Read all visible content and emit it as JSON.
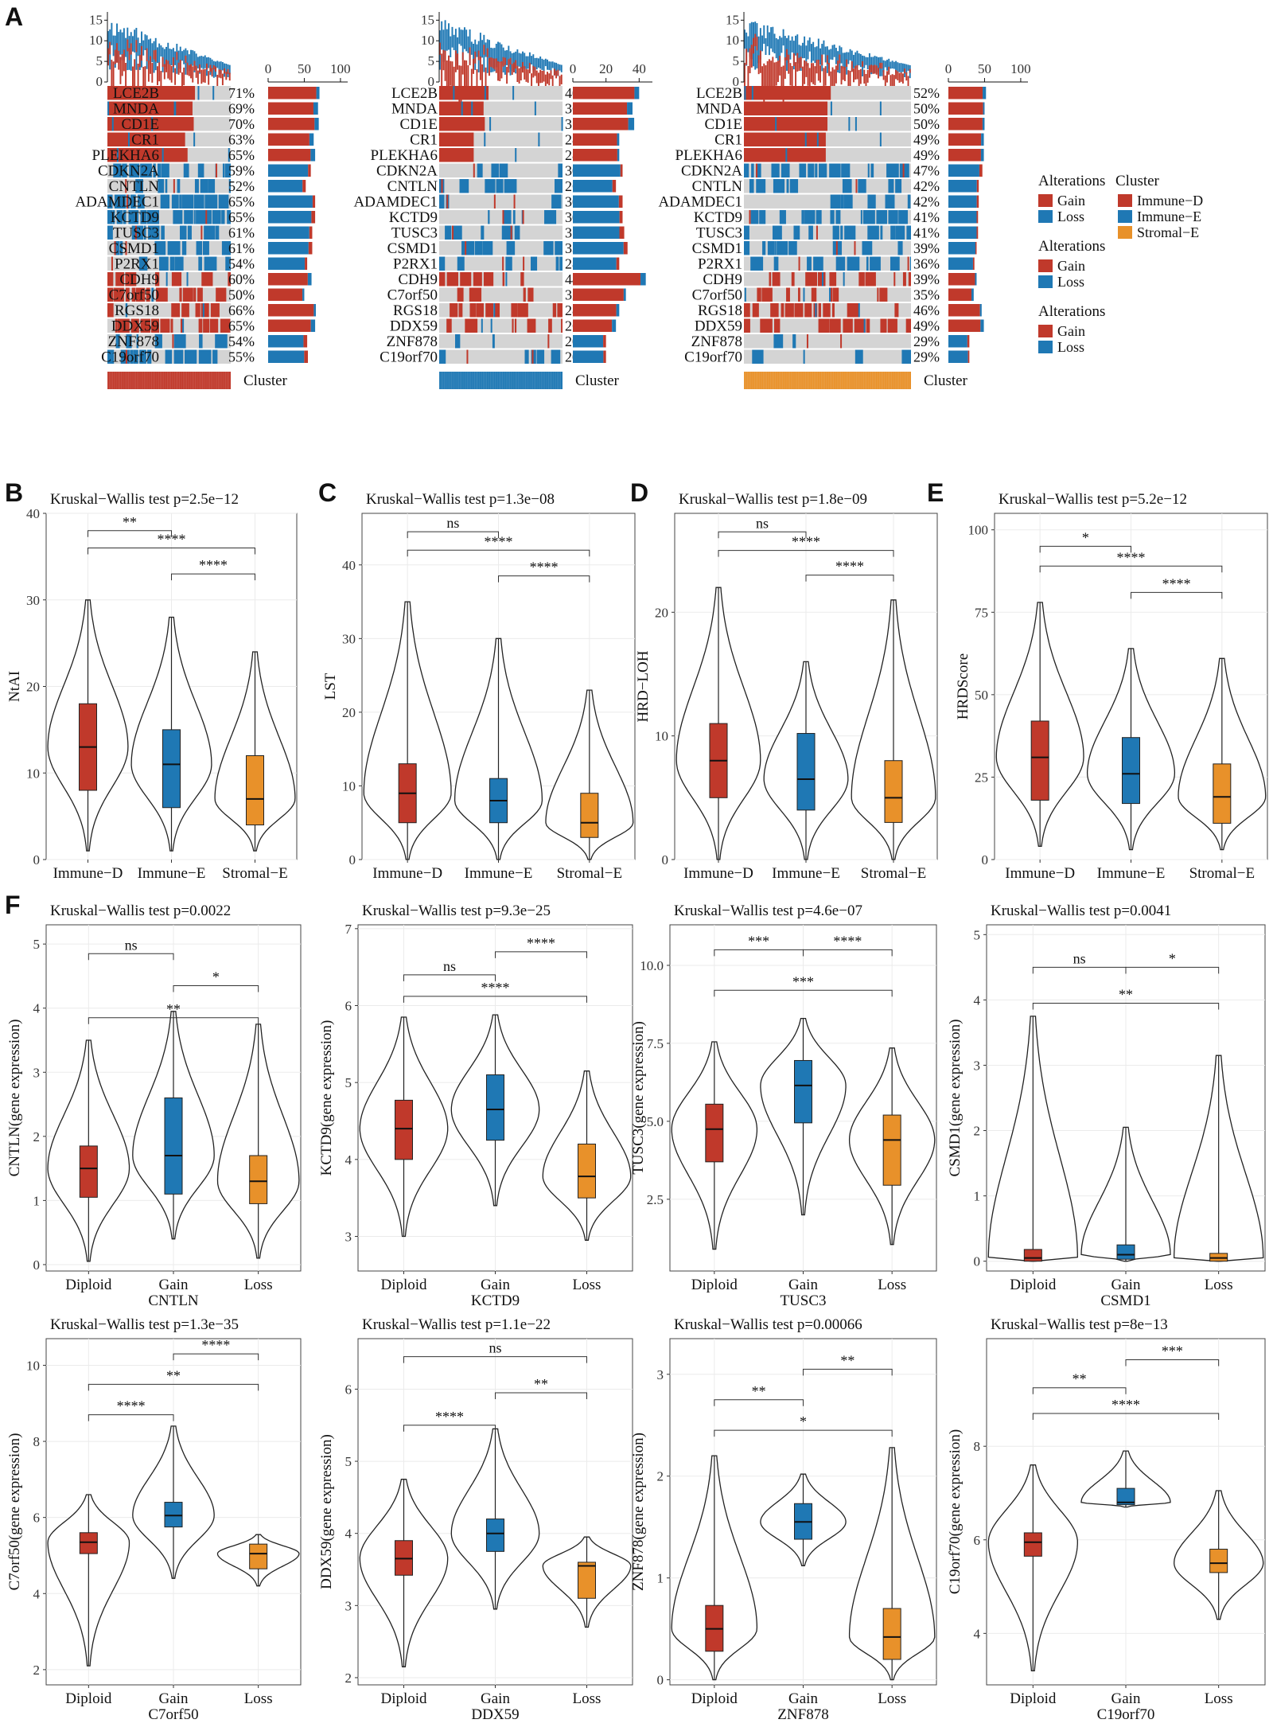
{
  "colors": {
    "gain": "#c0392b",
    "loss": "#1f78b4",
    "neutral": "#d4d4d4",
    "immune_d": "#c0392b",
    "immune_e": "#1f78b4",
    "stromal_e": "#e8912a",
    "diploid": "#c0392b",
    "gain_group": "#1f78b4",
    "loss_group": "#e8912a"
  },
  "panel_labels": [
    "A",
    "B",
    "C",
    "D",
    "E",
    "F"
  ],
  "chart_data": [
    {
      "id": "A",
      "type": "heatmap",
      "genes": [
        "LCE2B",
        "MNDA",
        "CD1E",
        "CR1",
        "PLEKHA6",
        "CDKN2A",
        "CNTLN",
        "ADAMDEC1",
        "KCTD9",
        "TUSC3",
        "CSMD1",
        "P2RX1",
        "CDH9",
        "C7orf50",
        "RGS18",
        "DDX59",
        "ZNF878",
        "C19orf70"
      ],
      "alteration_type": [
        "Gain",
        "Gain",
        "Gain",
        "Gain",
        "Gain",
        "Loss",
        "Loss",
        "Loss",
        "Loss",
        "Loss",
        "Loss",
        "Loss",
        "Gain",
        "Gain",
        "Gain",
        "Gain",
        "Loss",
        "Loss"
      ],
      "annotation_label": "Cluster",
      "top_bar_yticks": [
        "0",
        "5",
        "10",
        "15"
      ],
      "oncoprints": [
        {
          "cluster": "Immune-D",
          "pct_labels": [
            "71%",
            "69%",
            "70%",
            "63%",
            "65%",
            "59%",
            "52%",
            "65%",
            "65%",
            "61%",
            "61%",
            "54%",
            "60%",
            "50%",
            "66%",
            "65%",
            "54%",
            "55%"
          ],
          "pct": [
            71,
            69,
            70,
            63,
            65,
            59,
            52,
            65,
            65,
            61,
            61,
            54,
            60,
            50,
            66,
            65,
            54,
            55
          ],
          "bar_axis_ticks": [
            "0",
            "50",
            "100"
          ],
          "bar_axis_max": 110
        },
        {
          "cluster": "Immune-E",
          "pct_labels": [
            "40%",
            "36%",
            "37%",
            "28%",
            "28%",
            "30%",
            "26%",
            "30%",
            "30%",
            "31%",
            "33%",
            "28%",
            "44%",
            "32%",
            "28%",
            "26%",
            "20%",
            "20%"
          ],
          "pct": [
            40,
            36,
            37,
            28,
            28,
            30,
            26,
            30,
            30,
            31,
            33,
            28,
            44,
            32,
            28,
            26,
            20,
            20
          ],
          "bar_axis_ticks": [
            "0",
            "20",
            "40"
          ],
          "bar_axis_max": 48
        },
        {
          "cluster": "Stromal-E",
          "pct_labels": [
            "52%",
            "50%",
            "50%",
            "49%",
            "49%",
            "47%",
            "42%",
            "42%",
            "41%",
            "41%",
            "39%",
            "36%",
            "39%",
            "35%",
            "46%",
            "49%",
            "29%",
            "29%"
          ],
          "pct": [
            52,
            50,
            50,
            49,
            49,
            47,
            42,
            42,
            41,
            41,
            39,
            36,
            39,
            35,
            46,
            49,
            29,
            29
          ],
          "bar_axis_ticks": [
            "0",
            "50",
            "100"
          ],
          "bar_axis_max": 110
        }
      ],
      "legend": {
        "alterations_title": "Alterations",
        "cluster_title": "Cluster",
        "gain": "Gain",
        "loss": "Loss",
        "clusters": [
          "Immune−D",
          "Immune−E",
          "Stromal−E"
        ]
      }
    },
    {
      "id": "B",
      "type": "violin",
      "title": "Kruskal−Wallis test p=2.5e−12",
      "ylabel": "NtAI",
      "xlabel": "",
      "categories": [
        "Immune−D",
        "Immune−E",
        "Stromal−E"
      ],
      "ylim": [
        0,
        40
      ],
      "yticks": [
        0,
        10,
        20,
        30,
        40
      ],
      "groups": [
        {
          "min": 1,
          "q1": 8,
          "median": 13,
          "q3": 18,
          "max": 30
        },
        {
          "min": 1,
          "q1": 6,
          "median": 11,
          "q3": 15,
          "max": 28
        },
        {
          "min": 1,
          "q1": 4,
          "median": 7,
          "q3": 12,
          "max": 24
        }
      ],
      "comparisons": [
        {
          "a": 0,
          "b": 1,
          "label": "**",
          "y": 38
        },
        {
          "a": 0,
          "b": 2,
          "label": "****",
          "y": 36
        },
        {
          "a": 1,
          "b": 2,
          "label": "****",
          "y": 33
        }
      ]
    },
    {
      "id": "C",
      "type": "violin",
      "title": "Kruskal−Wallis test p=1.3e−08",
      "ylabel": "LST",
      "xlabel": "",
      "categories": [
        "Immune−D",
        "Immune−E",
        "Stromal−E"
      ],
      "ylim": [
        0,
        47
      ],
      "yticks": [
        0,
        10,
        20,
        30,
        40
      ],
      "groups": [
        {
          "min": 0,
          "q1": 5,
          "median": 9,
          "q3": 13,
          "max": 35
        },
        {
          "min": 0,
          "q1": 5,
          "median": 8,
          "q3": 11,
          "max": 30
        },
        {
          "min": 0,
          "q1": 3,
          "median": 5,
          "q3": 9,
          "max": 23
        }
      ],
      "comparisons": [
        {
          "a": 0,
          "b": 1,
          "label": "ns",
          "y": 44.5
        },
        {
          "a": 0,
          "b": 2,
          "label": "****",
          "y": 42
        },
        {
          "a": 1,
          "b": 2,
          "label": "****",
          "y": 38.5
        }
      ]
    },
    {
      "id": "D",
      "type": "violin",
      "title": "Kruskal−Wallis test p=1.8e−09",
      "ylabel": "HRD−LOH",
      "xlabel": "",
      "categories": [
        "Immune−D",
        "Immune−E",
        "Stromal−E"
      ],
      "ylim": [
        0,
        28
      ],
      "yticks": [
        0,
        10,
        20
      ],
      "groups": [
        {
          "min": 0,
          "q1": 5,
          "median": 8,
          "q3": 11,
          "max": 22
        },
        {
          "min": 0,
          "q1": 4,
          "median": 6.5,
          "q3": 10.2,
          "max": 16
        },
        {
          "min": 0,
          "q1": 3,
          "median": 5,
          "q3": 8,
          "max": 21
        }
      ],
      "comparisons": [
        {
          "a": 0,
          "b": 1,
          "label": "ns",
          "y": 26.5
        },
        {
          "a": 0,
          "b": 2,
          "label": "****",
          "y": 25
        },
        {
          "a": 1,
          "b": 2,
          "label": "****",
          "y": 23
        }
      ]
    },
    {
      "id": "E",
      "type": "violin",
      "title": "Kruskal−Wallis test p=5.2e−12",
      "ylabel": "HRDScore",
      "xlabel": "",
      "categories": [
        "Immune−D",
        "Immune−E",
        "Stromal−E"
      ],
      "ylim": [
        0,
        105
      ],
      "yticks": [
        0,
        25,
        50,
        75,
        100
      ],
      "groups": [
        {
          "min": 4,
          "q1": 18,
          "median": 31,
          "q3": 42,
          "max": 78
        },
        {
          "min": 3,
          "q1": 17,
          "median": 26,
          "q3": 37,
          "max": 64
        },
        {
          "min": 3,
          "q1": 11,
          "median": 19,
          "q3": 29,
          "max": 61
        }
      ],
      "comparisons": [
        {
          "a": 0,
          "b": 1,
          "label": "*",
          "y": 95
        },
        {
          "a": 0,
          "b": 2,
          "label": "****",
          "y": 89
        },
        {
          "a": 1,
          "b": 2,
          "label": "****",
          "y": 81
        }
      ]
    },
    {
      "id": "F1",
      "type": "violin",
      "title": "Kruskal−Wallis test p=0.0022",
      "ylabel": "CNTLN(gene expression)",
      "xlabel": "CNTLN",
      "categories": [
        "Diploid",
        "Gain",
        "Loss"
      ],
      "ylim": [
        -0.1,
        5.3
      ],
      "yticks": [
        0,
        1,
        2,
        3,
        4,
        5
      ],
      "groups": [
        {
          "min": 0.05,
          "q1": 1.05,
          "median": 1.5,
          "q3": 1.85,
          "max": 3.5
        },
        {
          "min": 0.4,
          "q1": 1.1,
          "median": 1.7,
          "q3": 2.6,
          "max": 3.95
        },
        {
          "min": 0.1,
          "q1": 0.95,
          "median": 1.3,
          "q3": 1.7,
          "max": 3.75
        }
      ],
      "comparisons": [
        {
          "a": 0,
          "b": 1,
          "label": "ns",
          "y": 4.85
        },
        {
          "a": 1,
          "b": 2,
          "label": "*",
          "y": 4.35
        },
        {
          "a": 0,
          "b": 2,
          "label": "**",
          "y": 3.85
        }
      ]
    },
    {
      "id": "F2",
      "type": "violin",
      "title": "Kruskal−Wallis test p=9.3e−25",
      "ylabel": "KCTD9(gene expression)",
      "xlabel": "KCTD9",
      "categories": [
        "Diploid",
        "Gain",
        "Loss"
      ],
      "ylim": [
        2.55,
        7.05
      ],
      "yticks": [
        3,
        4,
        5,
        6,
        7
      ],
      "groups": [
        {
          "min": 3.0,
          "q1": 4.0,
          "median": 4.4,
          "q3": 4.77,
          "max": 5.85
        },
        {
          "min": 3.4,
          "q1": 4.25,
          "median": 4.65,
          "q3": 5.1,
          "max": 5.88
        },
        {
          "min": 2.95,
          "q1": 3.5,
          "median": 3.78,
          "q3": 4.2,
          "max": 5.15
        }
      ],
      "comparisons": [
        {
          "a": 1,
          "b": 2,
          "label": "****",
          "y": 6.7
        },
        {
          "a": 0,
          "b": 1,
          "label": "ns",
          "y": 6.4
        },
        {
          "a": 0,
          "b": 2,
          "label": "****",
          "y": 6.12
        }
      ]
    },
    {
      "id": "F3",
      "type": "violin",
      "title": "Kruskal−Wallis test p=4.6e−07",
      "ylabel": "TUSC3(gene expression)",
      "xlabel": "TUSC3",
      "categories": [
        "Diploid",
        "Gain",
        "Loss"
      ],
      "ylim": [
        0.2,
        11.3
      ],
      "yticks": [
        2.5,
        5.0,
        7.5,
        10.0
      ],
      "ytick_labels": [
        "2.5",
        "5.0",
        "7.5",
        "10.0"
      ],
      "groups": [
        {
          "min": 0.9,
          "q1": 3.7,
          "median": 4.75,
          "q3": 5.55,
          "max": 7.55
        },
        {
          "min": 2.0,
          "q1": 4.95,
          "median": 6.15,
          "q3": 6.95,
          "max": 8.3
        },
        {
          "min": 1.05,
          "q1": 2.95,
          "median": 4.4,
          "q3": 5.2,
          "max": 7.35
        }
      ],
      "comparisons": [
        {
          "a": 0,
          "b": 1,
          "label": "***",
          "y": 10.5
        },
        {
          "a": 1,
          "b": 2,
          "label": "****",
          "y": 10.5
        },
        {
          "a": 0,
          "b": 2,
          "label": "***",
          "y": 9.2
        }
      ]
    },
    {
      "id": "F4",
      "type": "violin",
      "title": "Kruskal−Wallis test p=0.0041",
      "ylabel": "CSMD1(gene expression)",
      "xlabel": "CSMD1",
      "categories": [
        "Diploid",
        "Gain",
        "Loss"
      ],
      "ylim": [
        -0.15,
        5.15
      ],
      "yticks": [
        0,
        1,
        2,
        3,
        4,
        5
      ],
      "groups": [
        {
          "min": 0,
          "q1": 0.0,
          "median": 0.05,
          "q3": 0.18,
          "max": 3.75
        },
        {
          "min": 0,
          "q1": 0.03,
          "median": 0.1,
          "q3": 0.25,
          "max": 2.05
        },
        {
          "min": 0,
          "q1": 0.0,
          "median": 0.05,
          "q3": 0.12,
          "max": 3.15
        }
      ],
      "comparisons": [
        {
          "a": 0,
          "b": 1,
          "label": "ns",
          "y": 4.5
        },
        {
          "a": 1,
          "b": 2,
          "label": "*",
          "y": 4.5
        },
        {
          "a": 0,
          "b": 2,
          "label": "**",
          "y": 3.95
        }
      ]
    },
    {
      "id": "F5",
      "type": "violin",
      "title": "Kruskal−Wallis test p=1.3e−35",
      "ylabel": "C7orf50(gene expression)",
      "xlabel": "C7orf50",
      "categories": [
        "Diploid",
        "Gain",
        "Loss"
      ],
      "ylim": [
        1.6,
        10.7
      ],
      "yticks": [
        2,
        4,
        6,
        8,
        10
      ],
      "groups": [
        {
          "min": 2.1,
          "q1": 5.05,
          "median": 5.35,
          "q3": 5.6,
          "max": 6.6
        },
        {
          "min": 4.4,
          "q1": 5.75,
          "median": 6.05,
          "q3": 6.4,
          "max": 8.4
        },
        {
          "min": 4.2,
          "q1": 4.65,
          "median": 5.05,
          "q3": 5.3,
          "max": 5.55
        }
      ],
      "comparisons": [
        {
          "a": 1,
          "b": 2,
          "label": "****",
          "y": 10.3
        },
        {
          "a": 0,
          "b": 2,
          "label": "**",
          "y": 9.5
        },
        {
          "a": 0,
          "b": 1,
          "label": "****",
          "y": 8.7
        }
      ]
    },
    {
      "id": "F6",
      "type": "violin",
      "title": "Kruskal−Wallis test p=1.1e−22",
      "ylabel": "DDX59(gene expression)",
      "xlabel": "DDX59",
      "categories": [
        "Diploid",
        "Gain",
        "Loss"
      ],
      "ylim": [
        1.9,
        6.7
      ],
      "yticks": [
        2,
        3,
        4,
        5,
        6
      ],
      "groups": [
        {
          "min": 2.15,
          "q1": 3.42,
          "median": 3.65,
          "q3": 3.9,
          "max": 4.75
        },
        {
          "min": 2.95,
          "q1": 3.75,
          "median": 4.0,
          "q3": 4.2,
          "max": 5.45
        },
        {
          "min": 2.7,
          "q1": 3.1,
          "median": 3.55,
          "q3": 3.6,
          "max": 3.95
        }
      ],
      "comparisons": [
        {
          "a": 0,
          "b": 2,
          "label": "ns",
          "y": 6.45
        },
        {
          "a": 1,
          "b": 2,
          "label": "**",
          "y": 5.95
        },
        {
          "a": 0,
          "b": 1,
          "label": "****",
          "y": 5.5
        }
      ]
    },
    {
      "id": "F7",
      "type": "violin",
      "title": "Kruskal−Wallis test p=0.00066",
      "ylabel": "ZNF878(gene expression)",
      "xlabel": "ZNF878",
      "categories": [
        "Diploid",
        "Gain",
        "Loss"
      ],
      "ylim": [
        -0.05,
        3.35
      ],
      "yticks": [
        0,
        1,
        2,
        3
      ],
      "groups": [
        {
          "min": 0.0,
          "q1": 0.28,
          "median": 0.5,
          "q3": 0.73,
          "max": 2.2
        },
        {
          "min": 1.12,
          "q1": 1.38,
          "median": 1.55,
          "q3": 1.73,
          "max": 2.02
        },
        {
          "min": 0.0,
          "q1": 0.2,
          "median": 0.42,
          "q3": 0.7,
          "max": 2.28
        }
      ],
      "comparisons": [
        {
          "a": 1,
          "b": 2,
          "label": "**",
          "y": 3.05
        },
        {
          "a": 0,
          "b": 1,
          "label": "**",
          "y": 2.75
        },
        {
          "a": 0,
          "b": 2,
          "label": "*",
          "y": 2.45
        }
      ]
    },
    {
      "id": "F8",
      "type": "violin",
      "title": "Kruskal−Wallis test p=8e−13",
      "ylabel": "C19orf70(gene expression)",
      "xlabel": "C19orf70",
      "categories": [
        "Diploid",
        "Gain",
        "Loss"
      ],
      "ylim": [
        2.9,
        10.3
      ],
      "yticks": [
        4,
        6,
        8
      ],
      "groups": [
        {
          "min": 3.2,
          "q1": 5.65,
          "median": 5.95,
          "q3": 6.15,
          "max": 7.6
        },
        {
          "min": 6.7,
          "q1": 6.75,
          "median": 6.8,
          "q3": 7.1,
          "max": 7.9
        },
        {
          "min": 4.3,
          "q1": 5.3,
          "median": 5.5,
          "q3": 5.8,
          "max": 7.05
        }
      ],
      "comparisons": [
        {
          "a": 1,
          "b": 2,
          "label": "***",
          "y": 9.85
        },
        {
          "a": 0,
          "b": 1,
          "label": "**",
          "y": 9.25
        },
        {
          "a": 0,
          "b": 2,
          "label": "****",
          "y": 8.7
        }
      ]
    }
  ]
}
